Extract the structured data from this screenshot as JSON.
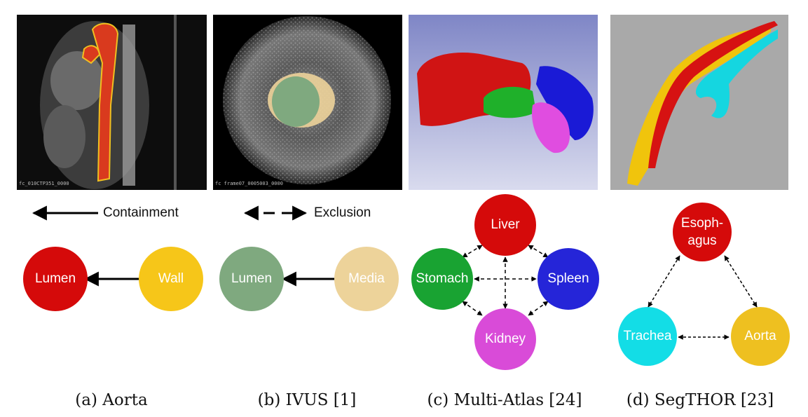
{
  "legend": {
    "containment": "Containment",
    "exclusion": "Exclusion"
  },
  "panels": {
    "a": {
      "image_text": "fc_010CTP351_0000",
      "caption": "(a) Aorta",
      "nodes": {
        "lumen": "Lumen",
        "wall": "Wall"
      },
      "colors": {
        "lumen": "#d50a0a",
        "wall": "#f6c619"
      }
    },
    "b": {
      "image_text": "fc frame07_0005003_0000",
      "caption": "(b) IVUS [1]",
      "nodes": {
        "lumen": "Lumen",
        "media": "Media"
      },
      "colors": {
        "lumen": "#7fa97f",
        "media": "#edd39a"
      }
    },
    "c": {
      "caption": "(c) Multi-Atlas [24]",
      "nodes": {
        "liver": "Liver",
        "stomach": "Stomach",
        "spleen": "Spleen",
        "kidney": "Kidney"
      },
      "colors": {
        "liver": "#d50a0a",
        "stomach": "#19a332",
        "spleen": "#2525d8",
        "kidney": "#d94bd8"
      }
    },
    "d": {
      "caption": "(d) SegTHOR [23]",
      "nodes": {
        "esophagus_line1": "Esoph-",
        "esophagus_line2": "agus",
        "trachea": "Trachea",
        "aorta": "Aorta"
      },
      "colors": {
        "esophagus": "#d50a0a",
        "trachea": "#13dde6",
        "aorta": "#eec020"
      }
    }
  }
}
